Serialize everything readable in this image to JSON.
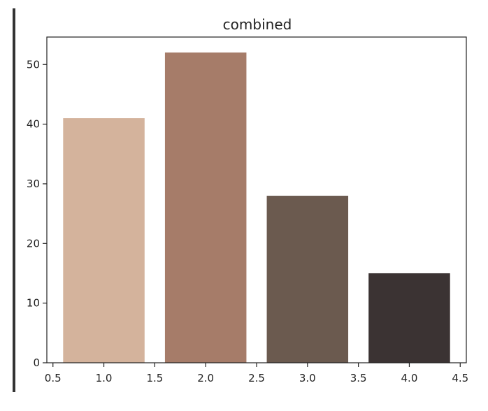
{
  "chart_data": {
    "type": "bar",
    "title": "combined",
    "xlabel": "",
    "ylabel": "",
    "x": [
      1.0,
      2.0,
      3.0,
      4.0
    ],
    "values": [
      41,
      52,
      28,
      15
    ],
    "bar_width": 0.8,
    "xlim": [
      0.44,
      4.56
    ],
    "ylim": [
      0,
      54.6
    ],
    "xticks": [
      0.5,
      1.0,
      1.5,
      2.0,
      2.5,
      3.0,
      3.5,
      4.0,
      4.5
    ],
    "xtick_labels": [
      "0.5",
      "1.0",
      "1.5",
      "2.0",
      "2.5",
      "3.0",
      "3.5",
      "4.0",
      "4.5"
    ],
    "yticks": [
      0,
      10,
      20,
      30,
      40,
      50
    ],
    "ytick_labels": [
      "0",
      "10",
      "20",
      "30",
      "40",
      "50"
    ],
    "colors": [
      "#d4b39c",
      "#a67c69",
      "#6b5a4f",
      "#3b3333"
    ],
    "grid": false,
    "legend": "none"
  }
}
